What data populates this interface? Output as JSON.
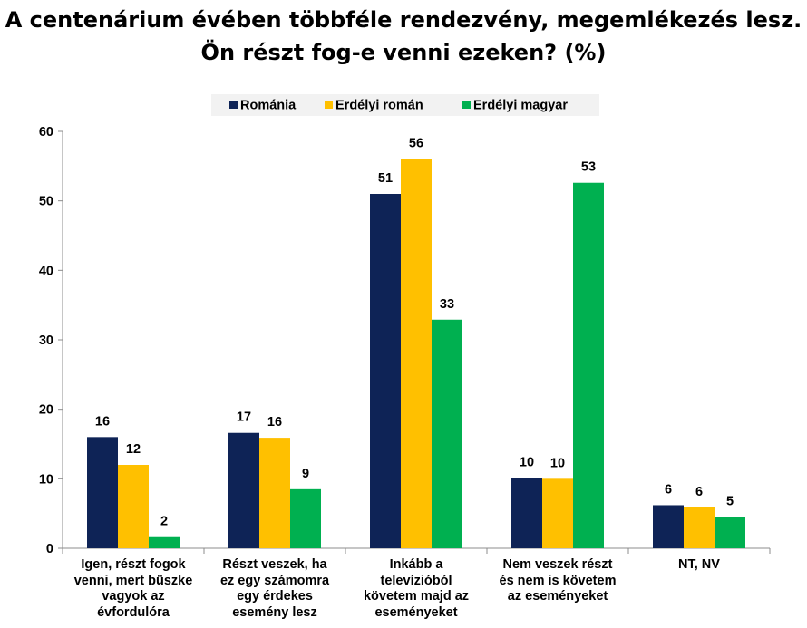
{
  "title_lines": [
    "A centenárium évében többféle rendezvény, megemlékezés lesz.",
    "Ön részt fog-e venni ezeken? (%)"
  ],
  "chart_data": {
    "type": "bar",
    "ylim": [
      0,
      60
    ],
    "yticks": [
      0,
      10,
      20,
      30,
      40,
      50,
      60
    ],
    "legend_position": "top",
    "grid": false,
    "categories": [
      [
        "Igen, részt fogok",
        "venni, mert büszke",
        "vagyok az",
        "évfordulóra"
      ],
      [
        "Részt veszek, ha",
        "ez egy számomra",
        "egy érdekes",
        "esemény lesz"
      ],
      [
        "Inkább a",
        "televízióból",
        "követem majd az",
        "eseményeket"
      ],
      [
        "Nem veszek részt",
        "és nem is követem",
        "az eseményeket"
      ],
      [
        "NT, NV"
      ]
    ],
    "series": [
      {
        "name": "Románia",
        "color": "#0E2356",
        "values": [
          16,
          16.6,
          51,
          10.1,
          6.2
        ],
        "labels": [
          "16",
          "17",
          "51",
          "10",
          "6"
        ]
      },
      {
        "name": "Erdélyi román",
        "color": "#FFC000",
        "values": [
          12,
          15.9,
          56,
          10,
          5.9
        ],
        "labels": [
          "12",
          "16",
          "56",
          "10",
          "6"
        ]
      },
      {
        "name": "Erdélyi magyar",
        "color": "#00B050",
        "values": [
          1.6,
          8.5,
          32.9,
          52.6,
          4.5
        ],
        "labels": [
          "2",
          "9",
          "33",
          "53",
          "5"
        ]
      }
    ]
  }
}
